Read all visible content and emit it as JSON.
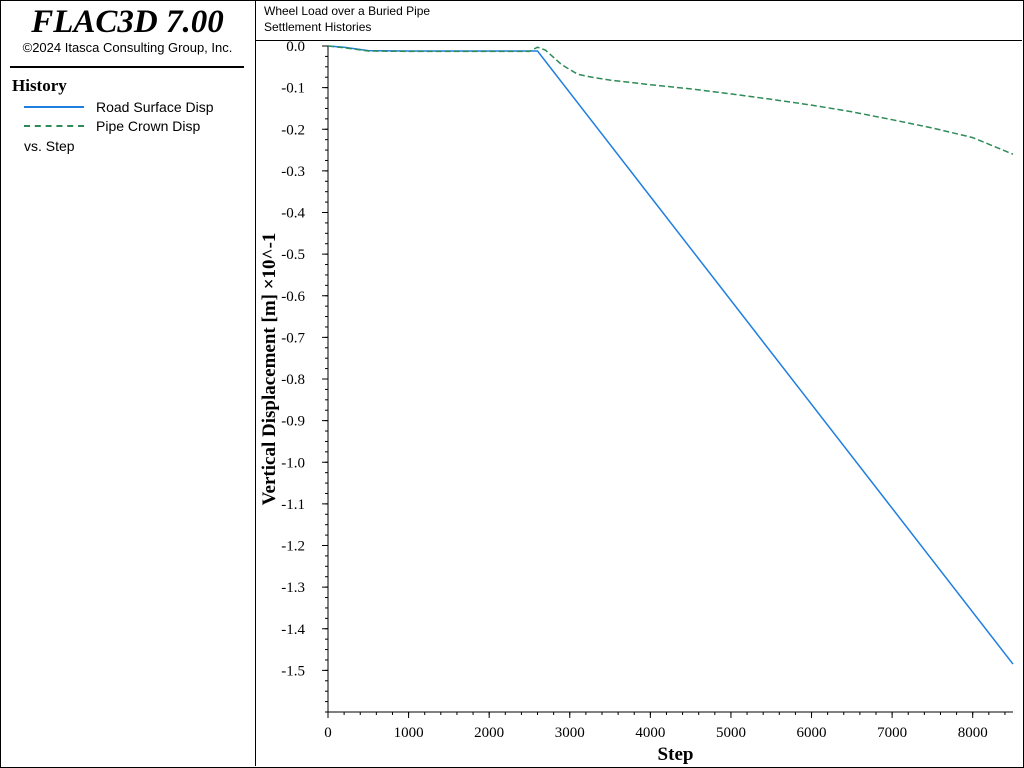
{
  "app": {
    "name": "FLAC3D 7.00",
    "copyright": "©2024 Itasca Consulting Group, Inc."
  },
  "legend": {
    "heading": "History",
    "entries": [
      {
        "label": "Road Surface Disp",
        "color": "#1f7fe0",
        "style": "solid"
      },
      {
        "label": "Pipe Crown Disp",
        "color": "#2e8b57",
        "style": "dashed"
      }
    ],
    "vs_label": "vs. Step"
  },
  "plot": {
    "title_line1": "Wheel Load over a Buried Pipe",
    "title_line2": "Settlement Histories"
  },
  "chart_data": {
    "type": "line",
    "title": "Wheel Load over a Buried Pipe",
    "subtitle": "Settlement Histories",
    "xlabel": "Step",
    "ylabel": "Vertical Displacement [m] ×10^-1",
    "xlim": [
      0,
      8500
    ],
    "ylim": [
      -1.6,
      0.0
    ],
    "xticks": [
      0,
      1000,
      2000,
      3000,
      4000,
      5000,
      6000,
      7000,
      8000
    ],
    "xtick_labels": [
      "0",
      "1000",
      "2000",
      "3000",
      "4000",
      "5000",
      "6000",
      "7000",
      "8000"
    ],
    "yticks": [
      0.0,
      -0.1,
      -0.2,
      -0.3,
      -0.4,
      -0.5,
      -0.6,
      -0.7,
      -0.8,
      -0.9,
      -1.0,
      -1.1,
      -1.2,
      -1.3,
      -1.4,
      -1.5
    ],
    "ytick_labels": [
      "0.0",
      "-0.1",
      "-0.2",
      "-0.3",
      "-0.4",
      "-0.5",
      "-0.6",
      "-0.7",
      "-0.8",
      "-0.9",
      "-1.0",
      "-1.1",
      "-1.2",
      "-1.3",
      "-1.4",
      "-1.5"
    ],
    "grid": false,
    "legend_placement": "left panel",
    "series": [
      {
        "name": "Road Surface Disp",
        "color": "#1f7fe0",
        "dash": "solid",
        "x": [
          0,
          200,
          500,
          1000,
          1500,
          2000,
          2500,
          2600,
          8500
        ],
        "y": [
          0.0,
          -0.003,
          -0.011,
          -0.012,
          -0.012,
          -0.012,
          -0.012,
          -0.012,
          -1.485
        ]
      },
      {
        "name": "Pipe Crown Disp",
        "color": "#2e8b57",
        "dash": "dashed",
        "x": [
          0,
          200,
          500,
          1000,
          1500,
          2000,
          2500,
          2600,
          2700,
          2900,
          3100,
          3300,
          3500,
          4000,
          4500,
          5000,
          5500,
          6000,
          6500,
          7000,
          7500,
          8000,
          8500
        ],
        "y": [
          0.0,
          -0.004,
          -0.012,
          -0.013,
          -0.013,
          -0.013,
          -0.013,
          -0.003,
          -0.01,
          -0.045,
          -0.068,
          -0.076,
          -0.082,
          -0.093,
          -0.103,
          -0.115,
          -0.128,
          -0.142,
          -0.158,
          -0.177,
          -0.197,
          -0.22,
          -0.26
        ]
      }
    ]
  }
}
